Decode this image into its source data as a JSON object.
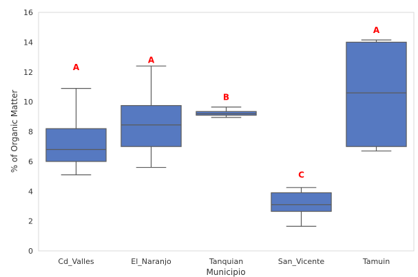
{
  "chart_data": {
    "type": "box",
    "xlabel": "Municipio",
    "ylabel": "% of Organic Matter",
    "ylim": [
      0,
      16
    ],
    "yticks": [
      0,
      2,
      4,
      6,
      8,
      10,
      12,
      14,
      16
    ],
    "grid": false,
    "box_color": "#5679c1",
    "edge_color": "#5a5a5a",
    "letter_color": "#ff0000",
    "categories": [
      "Cd_Valles",
      "El_Naranjo",
      "Tanquian",
      "San_Vicente",
      "Tamuin"
    ],
    "boxes": [
      {
        "category": "Cd_Valles",
        "whisker_low": 5.1,
        "q1": 6.0,
        "median": 6.8,
        "q3": 8.2,
        "whisker_high": 10.9,
        "letter": "A",
        "letter_y": 12.3
      },
      {
        "category": "El_Naranjo",
        "whisker_low": 5.6,
        "q1": 7.0,
        "median": 8.45,
        "q3": 9.75,
        "whisker_high": 12.4,
        "letter": "A",
        "letter_y": 12.8
      },
      {
        "category": "Tanquian",
        "whisker_low": 8.95,
        "q1": 9.1,
        "median": 9.2,
        "q3": 9.35,
        "whisker_high": 9.65,
        "letter": "B",
        "letter_y": 10.3
      },
      {
        "category": "San_Vicente",
        "whisker_low": 1.65,
        "q1": 2.65,
        "median": 3.1,
        "q3": 3.9,
        "whisker_high": 4.25,
        "letter": "C",
        "letter_y": 5.1
      },
      {
        "category": "Tamuin",
        "whisker_low": 6.7,
        "q1": 7.0,
        "median": 10.6,
        "q3": 14.0,
        "whisker_high": 14.15,
        "letter": "A",
        "letter_y": 14.8
      }
    ]
  }
}
